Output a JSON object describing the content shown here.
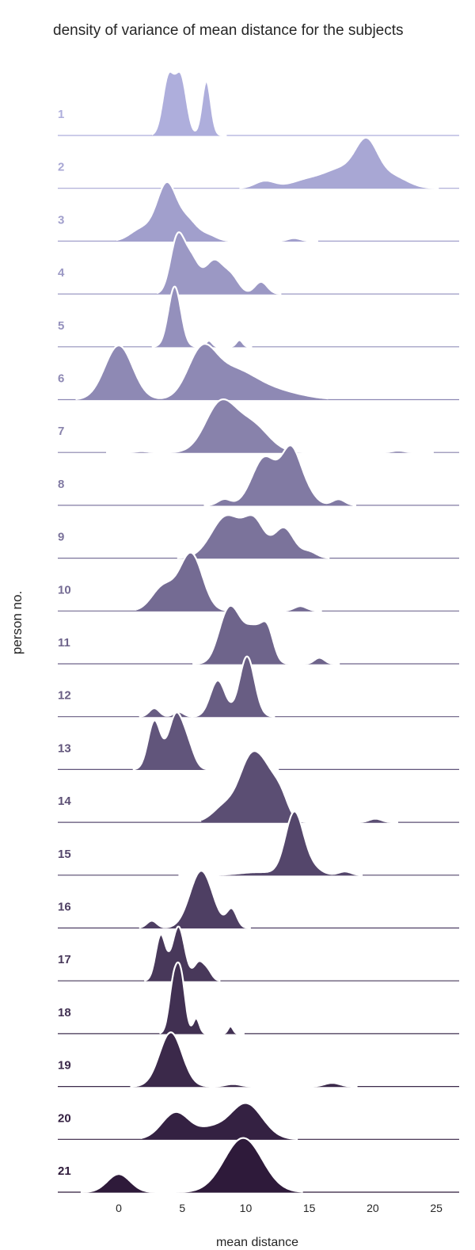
{
  "chart_data": {
    "type": "ridgeline",
    "title": "density of variance of mean distance for the subjects",
    "xlabel": "mean distance",
    "ylabel": "person no.",
    "xlim": [
      -4.8,
      26.8
    ],
    "xticks": [
      0,
      5,
      10,
      15,
      20,
      25
    ],
    "grid": false,
    "color_light": "#aeaedc",
    "color_dark": "#2e1a3a",
    "series": [
      {
        "name": "1",
        "range": [
          2.6,
          8.5
        ],
        "components": [
          [
            3.9,
            0.45,
            0.95
          ],
          [
            4.9,
            0.45,
            0.95
          ],
          [
            6.9,
            0.35,
            0.9
          ]
        ]
      },
      {
        "name": "2",
        "range": [
          9.5,
          25.2
        ],
        "components": [
          [
            11.5,
            0.8,
            0.12
          ],
          [
            15,
            1.4,
            0.15
          ],
          [
            17.5,
            1.2,
            0.28
          ],
          [
            19.5,
            0.9,
            0.72
          ],
          [
            21.5,
            1.2,
            0.2
          ]
        ]
      },
      {
        "name": "3",
        "range": [
          -0.2,
          15.7
        ],
        "components": [
          [
            1.8,
            0.9,
            0.2
          ],
          [
            3.8,
            0.8,
            0.95
          ],
          [
            5.5,
            0.7,
            0.3
          ],
          [
            7,
            0.7,
            0.1
          ],
          [
            13.8,
            0.5,
            0.05
          ]
        ]
      },
      {
        "name": "4",
        "range": [
          3.0,
          12.8
        ],
        "components": [
          [
            4.6,
            0.55,
            0.9
          ],
          [
            5.7,
            0.6,
            0.55
          ],
          [
            7.5,
            0.75,
            0.55
          ],
          [
            8.9,
            0.6,
            0.25
          ],
          [
            11.2,
            0.5,
            0.2
          ]
        ]
      },
      {
        "name": "5",
        "range": [
          2.6,
          10.5
        ],
        "components": [
          [
            4.4,
            0.5,
            1.0
          ],
          [
            7.1,
            0.25,
            0.1
          ],
          [
            9.5,
            0.25,
            0.11
          ]
        ]
      },
      {
        "name": "6",
        "range": [
          -3.4,
          16.5
        ],
        "components": [
          [
            0,
            1.1,
            0.9
          ],
          [
            6.5,
            1.1,
            0.7
          ],
          [
            8.8,
            1.8,
            0.45
          ],
          [
            12,
            2.2,
            0.15
          ]
        ]
      },
      {
        "name": "7",
        "range": [
          -1.0,
          24.8
        ],
        "components": [
          [
            1.8,
            0.5,
            0.02
          ],
          [
            8,
            1.2,
            0.8
          ],
          [
            10.5,
            1.3,
            0.45
          ],
          [
            22,
            0.5,
            0.03
          ]
        ]
      },
      {
        "name": "8",
        "range": [
          6.7,
          18.7
        ],
        "components": [
          [
            8.3,
            0.5,
            0.1
          ],
          [
            11.5,
            1.0,
            0.8
          ],
          [
            13.5,
            0.7,
            0.75
          ],
          [
            14.5,
            0.8,
            0.3
          ],
          [
            17.3,
            0.5,
            0.1
          ]
        ]
      },
      {
        "name": "9",
        "range": [
          4.6,
          16.6
        ],
        "components": [
          [
            8.5,
            1.2,
            0.7
          ],
          [
            10.7,
            0.8,
            0.55
          ],
          [
            13,
            0.8,
            0.5
          ],
          [
            15,
            0.6,
            0.1
          ]
        ]
      },
      {
        "name": "10",
        "range": [
          1.4,
          16.0
        ],
        "components": [
          [
            3.5,
            0.9,
            0.4
          ],
          [
            5.7,
            0.9,
            0.95
          ],
          [
            14.3,
            0.5,
            0.08
          ]
        ]
      },
      {
        "name": "11",
        "range": [
          5.8,
          17.4
        ],
        "components": [
          [
            8.4,
            0.7,
            0.55
          ],
          [
            9.3,
            0.8,
            0.6
          ],
          [
            10.7,
            0.6,
            0.45
          ],
          [
            11.7,
            0.5,
            0.55
          ],
          [
            15.8,
            0.4,
            0.1
          ]
        ]
      },
      {
        "name": "12",
        "range": [
          1.6,
          12.3
        ],
        "components": [
          [
            2.8,
            0.4,
            0.14
          ],
          [
            4.7,
            0.4,
            0.08
          ],
          [
            7.8,
            0.6,
            0.6
          ],
          [
            10.1,
            0.6,
            1.0
          ]
        ]
      },
      {
        "name": "13",
        "range": [
          1.1,
          12.6
        ],
        "components": [
          [
            2.8,
            0.5,
            0.8
          ],
          [
            4.5,
            0.6,
            0.9
          ],
          [
            5.5,
            0.5,
            0.3
          ],
          [
            11.2,
            0.4,
            0.07
          ]
        ]
      },
      {
        "name": "14",
        "range": [
          6.5,
          22.0
        ],
        "components": [
          [
            8.5,
            1.0,
            0.3
          ],
          [
            10.2,
            0.8,
            0.75
          ],
          [
            11.5,
            0.9,
            0.8
          ],
          [
            12.8,
            0.6,
            0.3
          ],
          [
            20.2,
            0.5,
            0.06
          ]
        ]
      },
      {
        "name": "15",
        "range": [
          4.7,
          19.2
        ],
        "components": [
          [
            13.8,
            0.7,
            1.0
          ],
          [
            15,
            0.8,
            0.15
          ],
          [
            17.8,
            0.5,
            0.06
          ],
          [
            11,
            1.5,
            0.05
          ]
        ]
      },
      {
        "name": "16",
        "range": [
          1.6,
          10.4
        ],
        "components": [
          [
            2.6,
            0.4,
            0.12
          ],
          [
            6.5,
            0.9,
            0.95
          ],
          [
            8.9,
            0.4,
            0.3
          ]
        ]
      },
      {
        "name": "17",
        "range": [
          2.0,
          8.0
        ],
        "components": [
          [
            3.3,
            0.4,
            0.75
          ],
          [
            4.7,
            0.5,
            0.9
          ],
          [
            6.3,
            0.4,
            0.3
          ],
          [
            7,
            0.35,
            0.15
          ]
        ]
      },
      {
        "name": "18",
        "range": [
          3.2,
          9.9
        ],
        "components": [
          [
            4.3,
            0.35,
            0.8
          ],
          [
            4.9,
            0.35,
            0.9
          ],
          [
            6.1,
            0.25,
            0.25
          ],
          [
            8.8,
            0.2,
            0.12
          ]
        ]
      },
      {
        "name": "19",
        "range": [
          0.9,
          18.8
        ],
        "components": [
          [
            4.1,
            0.9,
            0.9
          ],
          [
            9,
            0.6,
            0.04
          ],
          [
            16.8,
            0.6,
            0.06
          ]
        ]
      },
      {
        "name": "20",
        "range": [
          1.7,
          14.1
        ],
        "components": [
          [
            4.5,
            1.1,
            0.45
          ],
          [
            7.2,
            1.0,
            0.15
          ],
          [
            10,
            1.3,
            0.6
          ]
        ]
      },
      {
        "name": "21",
        "range": [
          -3.0,
          14.5
        ],
        "components": [
          [
            0,
            0.9,
            0.3
          ],
          [
            9.8,
            1.5,
            0.9
          ]
        ]
      }
    ]
  }
}
